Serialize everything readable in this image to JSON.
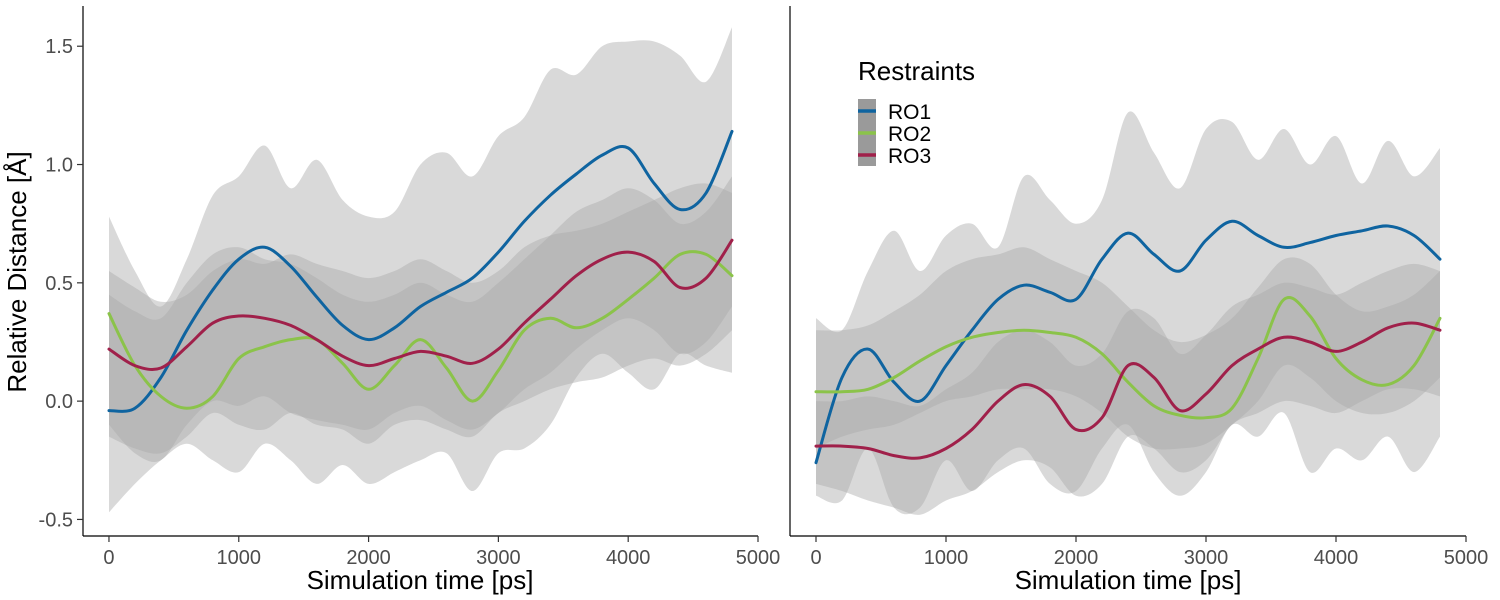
{
  "chart_data": [
    {
      "type": "line",
      "panel": "left",
      "xlabel": "Simulation time [ps]",
      "ylabel": "Relative Distance [Å]",
      "xlim": [
        -200,
        5000
      ],
      "ylim": [
        -0.57,
        1.67
      ],
      "xticks": [
        0,
        1000,
        2000,
        3000,
        4000,
        5000
      ],
      "xtick_labels": [
        "0",
        "1000",
        "2000",
        "3000",
        "4000",
        "5000"
      ],
      "yticks": [
        -0.5,
        0.0,
        0.5,
        1.0,
        1.5
      ],
      "ytick_labels": [
        "-0.5",
        "0.0",
        "0.5",
        "1.0",
        "1.5"
      ],
      "grid": false,
      "band_color": "#aaaaaa",
      "series": [
        {
          "name": "RO1",
          "color": "#0F64A0",
          "x": [
            0,
            200,
            400,
            600,
            800,
            1000,
            1200,
            1400,
            1600,
            1800,
            2000,
            2200,
            2400,
            2600,
            2800,
            3000,
            3200,
            3400,
            3600,
            3800,
            4000,
            4200,
            4400,
            4600,
            4800
          ],
          "y": [
            -0.04,
            -0.03,
            0.1,
            0.3,
            0.47,
            0.6,
            0.65,
            0.57,
            0.44,
            0.32,
            0.26,
            0.31,
            0.4,
            0.46,
            0.52,
            0.63,
            0.76,
            0.87,
            0.96,
            1.04,
            1.07,
            0.92,
            0.81,
            0.88,
            1.14
          ],
          "lower": [
            -0.47,
            -0.35,
            -0.25,
            -0.18,
            -0.25,
            -0.3,
            -0.18,
            -0.25,
            -0.35,
            -0.27,
            -0.35,
            -0.3,
            -0.25,
            -0.22,
            -0.38,
            -0.22,
            -0.2,
            -0.1,
            0.1,
            0.2,
            0.12,
            0.05,
            0.2,
            0.15,
            0.12
          ],
          "upper": [
            0.78,
            0.55,
            0.4,
            0.6,
            0.87,
            0.95,
            1.08,
            0.9,
            1.02,
            0.85,
            0.78,
            0.8,
            1.0,
            1.05,
            0.95,
            1.12,
            1.2,
            1.4,
            1.38,
            1.5,
            1.52,
            1.52,
            1.46,
            1.35,
            1.58
          ]
        },
        {
          "name": "RO2",
          "color": "#8BC34A",
          "x": [
            0,
            200,
            400,
            600,
            800,
            1000,
            1200,
            1400,
            1600,
            1800,
            2000,
            2200,
            2400,
            2600,
            2800,
            3000,
            3200,
            3400,
            3600,
            3800,
            4000,
            4200,
            4400,
            4600,
            4800
          ],
          "y": [
            0.37,
            0.15,
            0.02,
            -0.03,
            0.02,
            0.18,
            0.23,
            0.26,
            0.26,
            0.16,
            0.05,
            0.15,
            0.26,
            0.14,
            0.0,
            0.13,
            0.3,
            0.35,
            0.31,
            0.35,
            0.43,
            0.52,
            0.62,
            0.62,
            0.53
          ],
          "lower": [
            -0.15,
            -0.2,
            -0.22,
            -0.15,
            -0.05,
            -0.1,
            -0.12,
            -0.05,
            -0.1,
            -0.12,
            -0.18,
            -0.1,
            -0.08,
            -0.12,
            -0.15,
            -0.05,
            0.0,
            0.05,
            0.08,
            0.1,
            0.15,
            0.18,
            0.15,
            0.2,
            0.3
          ],
          "upper": [
            0.55,
            0.48,
            0.42,
            0.45,
            0.55,
            0.6,
            0.58,
            0.62,
            0.58,
            0.55,
            0.52,
            0.55,
            0.6,
            0.55,
            0.5,
            0.55,
            0.65,
            0.7,
            0.72,
            0.75,
            0.8,
            0.85,
            0.9,
            0.92,
            0.88
          ]
        },
        {
          "name": "RO3",
          "color": "#A0204A",
          "x": [
            0,
            200,
            400,
            600,
            800,
            1000,
            1200,
            1400,
            1600,
            1800,
            2000,
            2200,
            2400,
            2600,
            2800,
            3000,
            3200,
            3400,
            3600,
            3800,
            4000,
            4200,
            4400,
            4600,
            4800
          ],
          "y": [
            0.22,
            0.15,
            0.14,
            0.23,
            0.33,
            0.36,
            0.35,
            0.32,
            0.26,
            0.19,
            0.15,
            0.18,
            0.21,
            0.19,
            0.16,
            0.22,
            0.33,
            0.43,
            0.53,
            0.6,
            0.63,
            0.59,
            0.48,
            0.52,
            0.68
          ],
          "lower": [
            -0.1,
            -0.22,
            -0.25,
            -0.1,
            0.0,
            -0.02,
            0.02,
            -0.05,
            -0.08,
            -0.1,
            -0.12,
            -0.05,
            -0.02,
            -0.08,
            -0.12,
            -0.05,
            0.05,
            0.12,
            0.22,
            0.3,
            0.35,
            0.3,
            0.2,
            0.25,
            0.4
          ],
          "upper": [
            0.45,
            0.38,
            0.35,
            0.5,
            0.62,
            0.65,
            0.6,
            0.58,
            0.52,
            0.45,
            0.42,
            0.45,
            0.5,
            0.45,
            0.42,
            0.5,
            0.6,
            0.7,
            0.8,
            0.85,
            0.9,
            0.85,
            0.75,
            0.8,
            0.95
          ]
        }
      ]
    },
    {
      "type": "line",
      "panel": "right",
      "xlabel": "Simulation time [ps]",
      "ylabel": "",
      "xlim": [
        -200,
        5000
      ],
      "ylim": [
        -0.57,
        1.67
      ],
      "xticks": [
        0,
        1000,
        2000,
        3000,
        4000,
        5000
      ],
      "xtick_labels": [
        "0",
        "1000",
        "2000",
        "3000",
        "4000",
        "5000"
      ],
      "grid": false,
      "band_color": "#aaaaaa",
      "legend": {
        "title": "Restraints",
        "position": "top-left",
        "entries": [
          "RO1",
          "RO2",
          "RO3"
        ]
      },
      "series": [
        {
          "name": "RO1",
          "color": "#0F64A0",
          "x": [
            0,
            200,
            400,
            600,
            800,
            1000,
            1200,
            1400,
            1600,
            1800,
            2000,
            2200,
            2400,
            2600,
            2800,
            3000,
            3200,
            3400,
            3600,
            3800,
            4000,
            4200,
            4400,
            4600,
            4800
          ],
          "y": [
            -0.26,
            0.1,
            0.22,
            0.08,
            0.0,
            0.15,
            0.3,
            0.43,
            0.49,
            0.46,
            0.43,
            0.6,
            0.71,
            0.62,
            0.55,
            0.68,
            0.76,
            0.7,
            0.65,
            0.67,
            0.7,
            0.72,
            0.74,
            0.7,
            0.6
          ],
          "lower": [
            -0.4,
            -0.42,
            -0.2,
            -0.45,
            -0.45,
            -0.25,
            -0.38,
            -0.25,
            -0.2,
            -0.35,
            -0.38,
            -0.2,
            -0.1,
            -0.3,
            -0.4,
            -0.3,
            -0.1,
            -0.15,
            -0.05,
            -0.3,
            -0.2,
            -0.25,
            -0.15,
            -0.3,
            -0.15
          ],
          "upper": [
            0.35,
            0.3,
            0.55,
            0.72,
            0.55,
            0.7,
            0.75,
            0.65,
            0.95,
            0.85,
            0.75,
            0.85,
            1.22,
            1.05,
            0.9,
            1.15,
            1.18,
            1.02,
            1.15,
            1.0,
            1.12,
            0.92,
            1.1,
            0.95,
            1.07
          ]
        },
        {
          "name": "RO2",
          "color": "#8BC34A",
          "x": [
            0,
            200,
            400,
            600,
            800,
            1000,
            1200,
            1400,
            1600,
            1800,
            2000,
            2200,
            2400,
            2600,
            2800,
            3000,
            3200,
            3400,
            3600,
            3800,
            4000,
            4200,
            4400,
            4600,
            4800
          ],
          "y": [
            0.04,
            0.04,
            0.05,
            0.1,
            0.17,
            0.23,
            0.27,
            0.29,
            0.3,
            0.29,
            0.27,
            0.2,
            0.08,
            -0.02,
            -0.06,
            -0.07,
            -0.03,
            0.18,
            0.43,
            0.36,
            0.18,
            0.09,
            0.07,
            0.15,
            0.35
          ],
          "lower": [
            -0.2,
            -0.15,
            -0.12,
            -0.1,
            -0.05,
            0.0,
            0.02,
            0.05,
            0.05,
            0.05,
            0.02,
            -0.05,
            -0.15,
            -0.2,
            -0.2,
            -0.18,
            -0.1,
            0.0,
            0.15,
            0.1,
            0.0,
            -0.05,
            -0.05,
            0.0,
            0.1
          ],
          "upper": [
            0.3,
            0.3,
            0.32,
            0.38,
            0.45,
            0.55,
            0.6,
            0.62,
            0.65,
            0.6,
            0.55,
            0.5,
            0.4,
            0.3,
            0.25,
            0.28,
            0.35,
            0.48,
            0.6,
            0.58,
            0.45,
            0.38,
            0.4,
            0.45,
            0.55
          ]
        },
        {
          "name": "RO3",
          "color": "#A0204A",
          "x": [
            0,
            200,
            400,
            600,
            800,
            1000,
            1200,
            1400,
            1600,
            1800,
            2000,
            2200,
            2400,
            2600,
            2800,
            3000,
            3200,
            3400,
            3600,
            3800,
            4000,
            4200,
            4400,
            4600,
            4800
          ],
          "y": [
            -0.19,
            -0.19,
            -0.2,
            -0.23,
            -0.24,
            -0.2,
            -0.12,
            0.0,
            0.07,
            0.02,
            -0.12,
            -0.07,
            0.15,
            0.1,
            -0.04,
            0.03,
            0.15,
            0.22,
            0.27,
            0.25,
            0.21,
            0.25,
            0.31,
            0.33,
            0.3
          ],
          "lower": [
            -0.35,
            -0.38,
            -0.42,
            -0.45,
            -0.48,
            -0.42,
            -0.38,
            -0.3,
            -0.25,
            -0.28,
            -0.4,
            -0.35,
            -0.15,
            -0.2,
            -0.3,
            -0.25,
            -0.1,
            -0.05,
            0.0,
            -0.02,
            -0.05,
            0.0,
            0.05,
            0.05,
            0.02
          ],
          "upper": [
            0.0,
            0.0,
            0.02,
            0.0,
            -0.02,
            0.05,
            0.12,
            0.25,
            0.3,
            0.25,
            0.15,
            0.2,
            0.38,
            0.35,
            0.2,
            0.28,
            0.4,
            0.45,
            0.5,
            0.48,
            0.45,
            0.5,
            0.55,
            0.58,
            0.55
          ]
        }
      ]
    }
  ]
}
